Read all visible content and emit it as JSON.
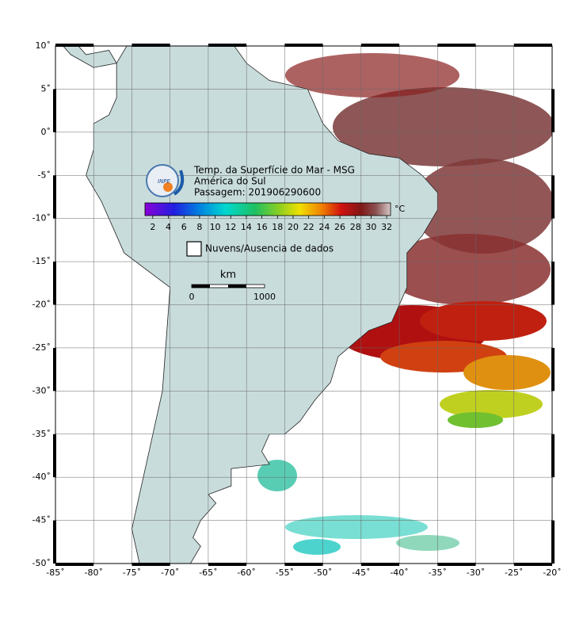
{
  "map": {
    "title_lines": [
      "Temp. da Superfície do Mar - MSG",
      "América do Sul",
      "Passagem: 201906290600"
    ],
    "logo": "INPE",
    "xlim": [
      -85,
      -20
    ],
    "ylim": [
      -50,
      10
    ],
    "xticks": [
      {
        "value": -85,
        "label": "-85˚"
      },
      {
        "value": -80,
        "label": "-80˚"
      },
      {
        "value": -75,
        "label": "-75˚"
      },
      {
        "value": -70,
        "label": "-70˚"
      },
      {
        "value": -65,
        "label": "-65˚"
      },
      {
        "value": -60,
        "label": "-60˚"
      },
      {
        "value": -55,
        "label": "-55˚"
      },
      {
        "value": -50,
        "label": "-50˚"
      },
      {
        "value": -45,
        "label": "-45˚"
      },
      {
        "value": -40,
        "label": "-40˚"
      },
      {
        "value": -35,
        "label": "-35˚"
      },
      {
        "value": -30,
        "label": "-30˚"
      },
      {
        "value": -25,
        "label": "-25˚"
      },
      {
        "value": -20,
        "label": "-20˚"
      }
    ],
    "yticks": [
      {
        "value": 10,
        "label": "10˚"
      },
      {
        "value": 5,
        "label": "5˚"
      },
      {
        "value": 0,
        "label": "0˚"
      },
      {
        "value": -5,
        "label": "-5˚"
      },
      {
        "value": -10,
        "label": "-10˚"
      },
      {
        "value": -15,
        "label": "-15˚"
      },
      {
        "value": -20,
        "label": "-20˚"
      },
      {
        "value": -25,
        "label": "-25˚"
      },
      {
        "value": -30,
        "label": "-30˚"
      },
      {
        "value": -35,
        "label": "-35˚"
      },
      {
        "value": -40,
        "label": "-40˚"
      },
      {
        "value": -45,
        "label": "-45˚"
      },
      {
        "value": -50,
        "label": "-50˚"
      }
    ],
    "colorbar": {
      "unit": "°C",
      "lim": [
        1,
        32.5
      ],
      "ticks": [
        2,
        4,
        6,
        8,
        10,
        12,
        14,
        16,
        18,
        20,
        22,
        24,
        26,
        28,
        30,
        32
      ]
    },
    "legend": "Nuvens/Ausencia de dados",
    "scale_bar": {
      "unit": "km",
      "start": "0",
      "end": "1000"
    }
  }
}
